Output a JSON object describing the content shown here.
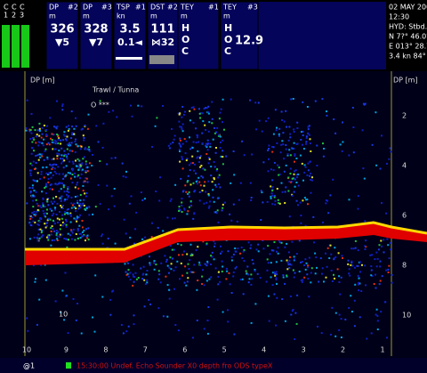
{
  "header": {
    "channels": {
      "labels": [
        "C",
        "C",
        "C"
      ],
      "numbers": [
        "1",
        "2",
        "3"
      ]
    },
    "panels": [
      {
        "name": "DP",
        "id": "#2",
        "unit": "m",
        "value": "326",
        "sub": "▼5"
      },
      {
        "name": "DP",
        "id": "#3",
        "unit": "m",
        "value": "328",
        "sub": "▼7"
      },
      {
        "name": "TSP",
        "id": "#1",
        "unit": "kn",
        "value": "3.5",
        "sub": "0.1◄"
      },
      {
        "name": "DST",
        "id": "#2",
        "unit": "m",
        "value": "111",
        "sub": "⋈32"
      },
      {
        "name": "TEY",
        "id": "#1",
        "unit": "m",
        "value": "H O C",
        "sub": ""
      },
      {
        "name": "TEY",
        "id": "#3",
        "unit": "m",
        "value": "H O C",
        "sub": "12.9"
      }
    ],
    "info": [
      "02 MAY 200",
      "12:30",
      "HYD: Stbd./",
      "N 7?° 46.0?",
      "E 013° 28.7",
      "3.4 kn 84°"
    ]
  },
  "echogram": {
    "left_axis_title": "DP [m]",
    "right_axis_title": "DP [m]",
    "annotation": "Trawl / Tunna",
    "marker": "O ***",
    "right_ticks": [
      "2",
      "4",
      "6",
      "8",
      "10"
    ],
    "left_ticks": [
      "10"
    ],
    "bottom_ticks": [
      "10",
      "9",
      "8",
      "7",
      "6",
      "5",
      "4",
      "3",
      "2",
      "1"
    ]
  },
  "status": {
    "id": "@1",
    "message": "15:30:00 Undef. Echo Sounder X0 depth fro ODS typeX"
  }
}
